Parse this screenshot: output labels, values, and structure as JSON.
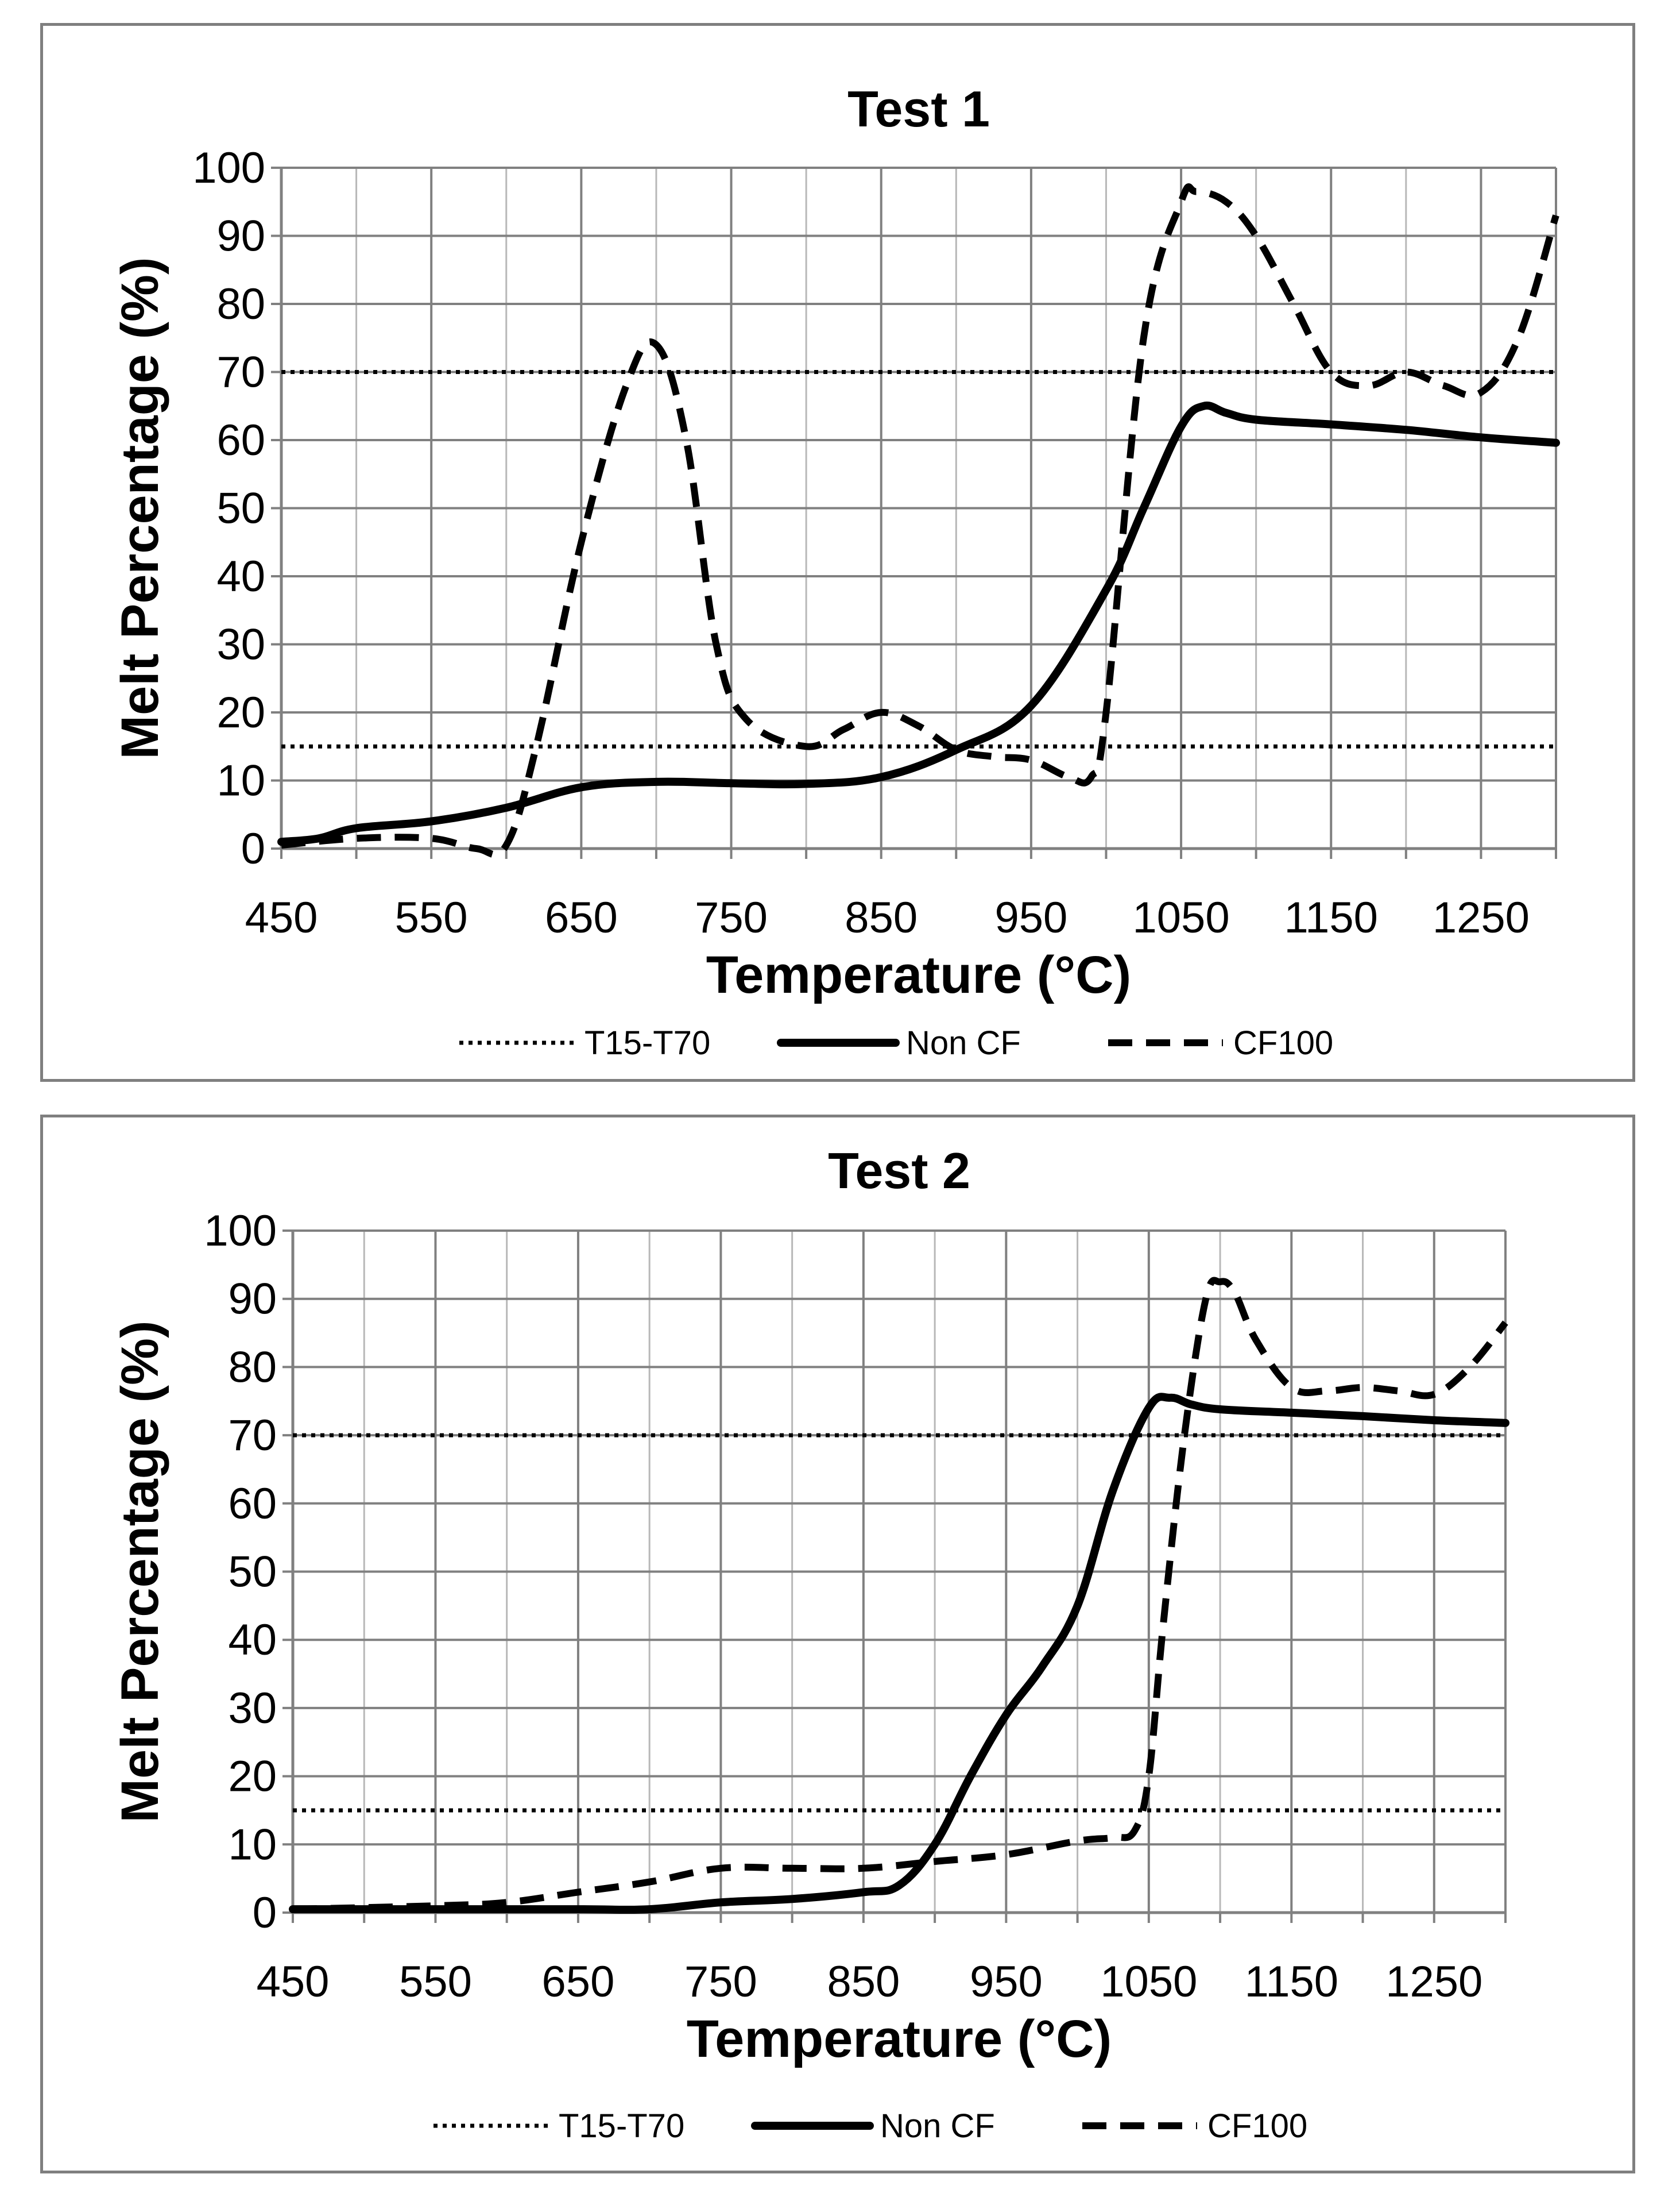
{
  "chart_data": [
    {
      "type": "line",
      "title": "Test 1",
      "xlabel": "Temperature (°C)",
      "ylabel": "Melt Percentage (%)",
      "xlim": [
        450,
        1300
      ],
      "ylim": [
        0,
        100
      ],
      "x_ticks": [
        450,
        550,
        650,
        750,
        850,
        950,
        1050,
        1150,
        1250
      ],
      "y_ticks": [
        0,
        10,
        20,
        30,
        40,
        50,
        60,
        70,
        80,
        90,
        100
      ],
      "grid": true,
      "legend_position": "bottom",
      "series": [
        {
          "name": "T15-T70",
          "style": "dotted",
          "x": [
            450,
            1300
          ],
          "values": [
            15,
            15
          ]
        },
        {
          "name": "T15-T70",
          "style": "dotted",
          "x": [
            450,
            1300
          ],
          "values": [
            70,
            70
          ]
        },
        {
          "name": "Non CF",
          "style": "solid",
          "x": [
            450,
            475,
            500,
            550,
            600,
            650,
            700,
            750,
            800,
            850,
            900,
            950,
            1000,
            1025,
            1050,
            1065,
            1080,
            1100,
            1150,
            1200,
            1250,
            1300
          ],
          "values": [
            1,
            1.5,
            3,
            4,
            6,
            9,
            9.8,
            9.6,
            9.5,
            10.5,
            14.5,
            21,
            38,
            50,
            62,
            65,
            64,
            63,
            62.3,
            61.5,
            60.4,
            59.6
          ]
        },
        {
          "name": "CF100",
          "style": "dashed",
          "x": [
            450,
            500,
            550,
            580,
            600,
            620,
            650,
            680,
            700,
            720,
            740,
            760,
            800,
            825,
            850,
            875,
            900,
            925,
            950,
            975,
            990,
            1000,
            1025,
            1050,
            1060,
            1080,
            1100,
            1125,
            1150,
            1175,
            1200,
            1225,
            1250,
            1275,
            1300
          ],
          "values": [
            0.5,
            1.5,
            1.5,
            0,
            0.5,
            15,
            45,
            68,
            74,
            60,
            30,
            19,
            15,
            17.5,
            20,
            18,
            14.5,
            13.5,
            13,
            10.5,
            10.5,
            20,
            75,
            95,
            96.5,
            95,
            90,
            80,
            70,
            68,
            70,
            68,
            67,
            75,
            93
          ]
        }
      ]
    },
    {
      "type": "line",
      "title": "Test 2",
      "xlabel": "Temperature (°C)",
      "ylabel": "Melt Percentage (%)",
      "xlim": [
        450,
        1300
      ],
      "ylim": [
        0,
        100
      ],
      "x_ticks": [
        450,
        550,
        650,
        750,
        850,
        950,
        1050,
        1150,
        1250
      ],
      "y_ticks": [
        0,
        10,
        20,
        30,
        40,
        50,
        60,
        70,
        80,
        90,
        100
      ],
      "grid": true,
      "legend_position": "bottom",
      "series": [
        {
          "name": "T15-T70",
          "style": "dotted",
          "x": [
            450,
            1300
          ],
          "values": [
            15,
            15
          ]
        },
        {
          "name": "T15-T70",
          "style": "dotted",
          "x": [
            450,
            1300
          ],
          "values": [
            70,
            70
          ]
        },
        {
          "name": "Non CF",
          "style": "solid",
          "x": [
            450,
            550,
            650,
            700,
            750,
            800,
            850,
            875,
            900,
            925,
            950,
            975,
            1000,
            1025,
            1050,
            1065,
            1080,
            1100,
            1150,
            1200,
            1250,
            1300
          ],
          "values": [
            0.5,
            0.5,
            0.5,
            0.5,
            1.5,
            2,
            3,
            4,
            10,
            20,
            29,
            36,
            45,
            62,
            74,
            75.5,
            74.5,
            73.8,
            73.3,
            72.8,
            72.2,
            71.8
          ]
        },
        {
          "name": "CF100",
          "style": "dashed",
          "x": [
            450,
            550,
            600,
            650,
            700,
            750,
            800,
            850,
            900,
            950,
            1000,
            1025,
            1040,
            1050,
            1060,
            1075,
            1090,
            1100,
            1110,
            1125,
            1150,
            1175,
            1200,
            1225,
            1250,
            1275,
            1300
          ],
          "values": [
            0.5,
            1,
            1.5,
            3,
            4.5,
            6.5,
            6.5,
            6.5,
            7.5,
            8.5,
            10.5,
            11,
            12,
            20,
            42,
            70,
            90,
            92.5,
            91,
            84,
            77,
            76.5,
            77,
            76.5,
            76,
            80,
            86.5
          ]
        }
      ]
    }
  ],
  "legend": {
    "labels": [
      "T15-T70",
      "Non CF",
      "CF100"
    ]
  }
}
